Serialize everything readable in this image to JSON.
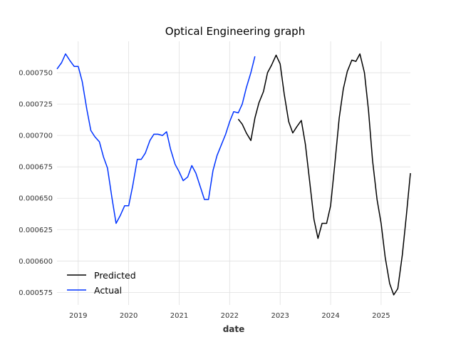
{
  "chart_data": {
    "type": "line",
    "title": "Optical Engineering graph",
    "xlabel": "date",
    "ylabel": "",
    "xlim": [
      2018.58,
      2025.58
    ],
    "ylim": [
      0.000565,
      0.000775
    ],
    "x_ticks": [
      2019,
      2020,
      2021,
      2022,
      2023,
      2024,
      2025
    ],
    "x_tick_labels": [
      "2019",
      "2020",
      "2021",
      "2022",
      "2023",
      "2024",
      "2025"
    ],
    "y_ticks": [
      0.000575,
      0.0006,
      0.000625,
      0.00065,
      0.000675,
      0.0007,
      0.000725,
      0.00075
    ],
    "y_tick_labels": [
      "0.000575",
      "0.000600",
      "0.000625",
      "0.000650",
      "0.000675",
      "0.000700",
      "0.000725",
      "0.000750"
    ],
    "grid": true,
    "legend_position": "bottom-left",
    "legend": [
      "Predicted",
      "Actual"
    ],
    "series": [
      {
        "name": "Predicted",
        "color": "#000000",
        "x": [
          2022.17,
          2022.25,
          2022.33,
          2022.42,
          2022.5,
          2022.58,
          2022.67,
          2022.75,
          2022.83,
          2022.92,
          2023.0,
          2023.08,
          2023.17,
          2023.25,
          2023.33,
          2023.42,
          2023.5,
          2023.58,
          2023.67,
          2023.75,
          2023.83,
          2023.92,
          2024.0,
          2024.08,
          2024.17,
          2024.25,
          2024.33,
          2024.42,
          2024.5,
          2024.58,
          2024.67,
          2024.75,
          2024.83,
          2024.92,
          2025.0,
          2025.08,
          2025.17,
          2025.25,
          2025.33,
          2025.42,
          2025.5,
          2025.58
        ],
        "y": [
          0.000713,
          0.000709,
          0.000702,
          0.000696,
          0.000714,
          0.000726,
          0.000735,
          0.00075,
          0.000756,
          0.000764,
          0.000757,
          0.000733,
          0.000711,
          0.000702,
          0.000707,
          0.000712,
          0.000693,
          0.000665,
          0.000633,
          0.000618,
          0.00063,
          0.00063,
          0.000644,
          0.000676,
          0.000714,
          0.000737,
          0.000751,
          0.00076,
          0.000759,
          0.000765,
          0.00075,
          0.00072,
          0.00068,
          0.000649,
          0.00063,
          0.000603,
          0.000582,
          0.000573,
          0.000578,
          0.000605,
          0.000636,
          0.00067
        ]
      },
      {
        "name": "Actual",
        "color": "#0033ff",
        "x": [
          2018.58,
          2018.67,
          2018.75,
          2018.83,
          2018.92,
          2019.0,
          2019.08,
          2019.17,
          2019.25,
          2019.33,
          2019.42,
          2019.5,
          2019.58,
          2019.67,
          2019.75,
          2019.83,
          2019.92,
          2020.0,
          2020.08,
          2020.17,
          2020.25,
          2020.33,
          2020.42,
          2020.5,
          2020.58,
          2020.67,
          2020.75,
          2020.83,
          2020.92,
          2021.0,
          2021.08,
          2021.17,
          2021.25,
          2021.33,
          2021.42,
          2021.5,
          2021.58,
          2021.67,
          2021.75,
          2021.83,
          2021.92,
          2022.0,
          2022.08,
          2022.17,
          2022.25,
          2022.33,
          2022.42,
          2022.5
        ],
        "y": [
          0.000753,
          0.000758,
          0.000765,
          0.00076,
          0.000755,
          0.000755,
          0.000743,
          0.000721,
          0.000704,
          0.000699,
          0.000695,
          0.000683,
          0.000674,
          0.00065,
          0.00063,
          0.000636,
          0.000644,
          0.000644,
          0.00066,
          0.000681,
          0.000681,
          0.000686,
          0.000696,
          0.000701,
          0.000701,
          0.0007,
          0.000703,
          0.000689,
          0.000677,
          0.000671,
          0.000664,
          0.000667,
          0.000676,
          0.00067,
          0.000659,
          0.000649,
          0.000649,
          0.000672,
          0.000684,
          0.000692,
          0.000701,
          0.000711,
          0.000719,
          0.000718,
          0.000725,
          0.000738,
          0.00075,
          0.000763
        ]
      }
    ]
  }
}
